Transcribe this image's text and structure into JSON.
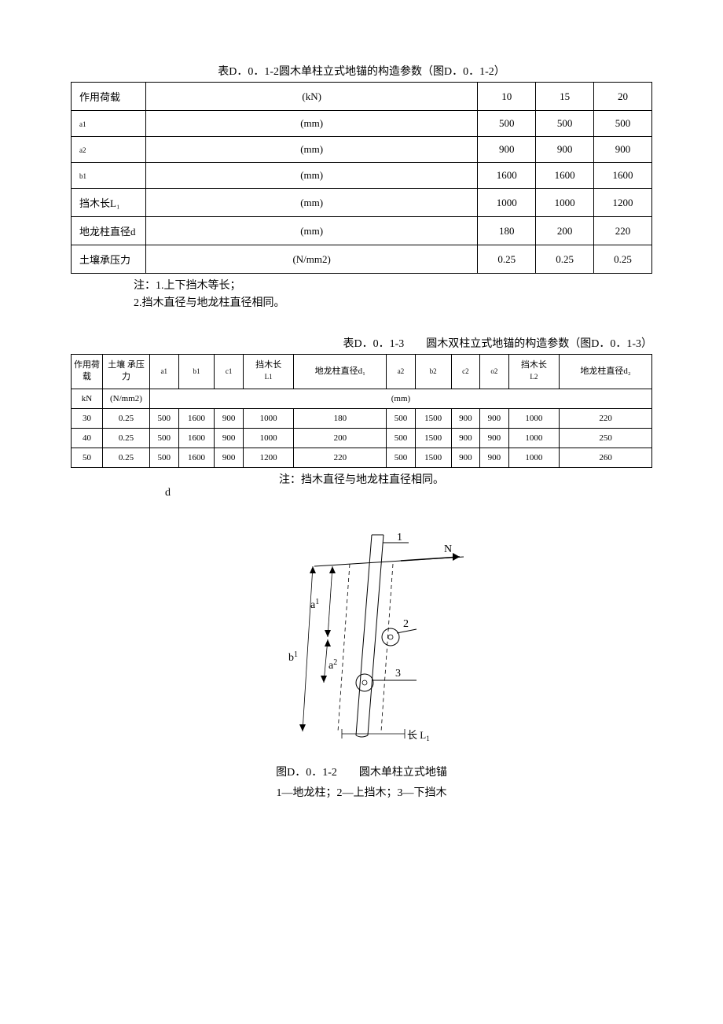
{
  "table1": {
    "caption": "表D．0．1-2圆木单柱立式地锚的构造参数（图D．0．1-2）",
    "rows": [
      {
        "label": "作用荷载",
        "unit": "(kN)",
        "v1": "10",
        "v2": "15",
        "v3": "20"
      },
      {
        "label": "a1",
        "small": true,
        "unit": "(mm)",
        "v1": "500",
        "v2": "500",
        "v3": "500"
      },
      {
        "label": "a2",
        "small": true,
        "unit": "(mm)",
        "v1": "900",
        "v2": "900",
        "v3": "900"
      },
      {
        "label": "b1",
        "small": true,
        "unit": "(mm)",
        "v1": "1600",
        "v2": "1600",
        "v3": "1600"
      },
      {
        "label": "挡木长L₁",
        "unit": "(mm)",
        "v1": "1000",
        "v2": "1000",
        "v3": "1200"
      },
      {
        "label": "地龙柱直径d",
        "unit": "(mm)",
        "v1": "180",
        "v2": "200",
        "v3": "220"
      },
      {
        "label": "土壤承压力",
        "unit": "(N/mm2)",
        "v1": "0.25",
        "v2": "0.25",
        "v3": "0.25"
      }
    ],
    "notes": [
      "注：1.上下挡木等长；",
      "2.挡木直径与地龙柱直径相同。"
    ]
  },
  "table2": {
    "caption": "表D．0．1-3　　圆木双柱立式地锚的构造参数（图D．0．1-3）",
    "headers": {
      "load": "作用荷载",
      "soil": "土壤 承压力",
      "a1": "a1",
      "b1": "b1",
      "c1": "c1",
      "L1": "挡木长",
      "L1sub": "L1",
      "d1": "地龙柱直径d₁",
      "a2": "a2",
      "b2": "b2",
      "c2": "c2",
      "o2": "o2",
      "L2": "挡木长",
      "L2sub": "L2",
      "d2": "地龙柱直径d₂",
      "unit_kn": "kN",
      "unit_soil": "(N/mm2)",
      "unit_mm": "(mm)"
    },
    "rows": [
      {
        "load": "30",
        "soil": "0.25",
        "a1": "500",
        "b1": "1600",
        "c1": "900",
        "L1": "1000",
        "d1": "180",
        "a2": "500",
        "b2": "1500",
        "c2": "900",
        "o2": "900",
        "L2": "1000",
        "d2": "220"
      },
      {
        "load": "40",
        "soil": "0.25",
        "a1": "500",
        "b1": "1600",
        "c1": "900",
        "L1": "1000",
        "d1": "200",
        "a2": "500",
        "b2": "1500",
        "c2": "900",
        "o2": "900",
        "L2": "1000",
        "d2": "250"
      },
      {
        "load": "50",
        "soil": "0.25",
        "a1": "500",
        "b1": "1600",
        "c1": "900",
        "L1": "1200",
        "d1": "220",
        "a2": "500",
        "b2": "1500",
        "c2": "900",
        "o2": "900",
        "L2": "1000",
        "d2": "260"
      }
    ],
    "note": "注：挡木直径与地龙柱直径相同。"
  },
  "figure": {
    "d_label": "d",
    "labels": {
      "n1": "1",
      "n2": "2",
      "n3": "3",
      "N": "N",
      "a1": "a",
      "a1sup": "1",
      "a2": "a",
      "a2sup": "2",
      "b1": "b",
      "b1sup": "1",
      "L": "长 L",
      "Lsub": "1"
    },
    "caption1": "图D．0．1-2　　圆木单柱立式地锚",
    "caption2": "1—地龙柱；2—上挡木；3—下挡木",
    "colors": {
      "stroke": "#000000",
      "fill": "#ffffff"
    }
  }
}
